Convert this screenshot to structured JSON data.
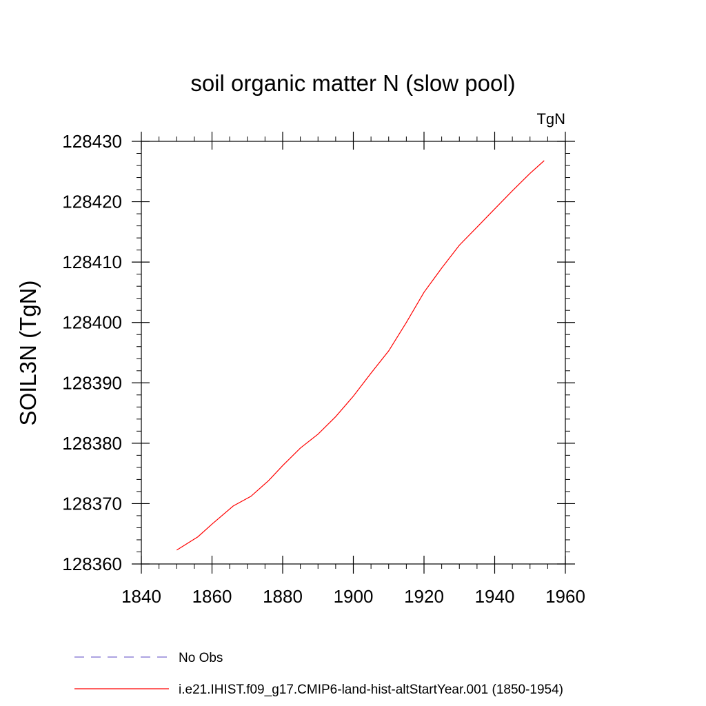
{
  "chart_data": {
    "type": "line",
    "title": "soil organic matter N (slow pool)",
    "units_label": "TgN",
    "xlabel": "",
    "ylabel": "SOIL3N  (TgN)",
    "xlim": [
      1840,
      1960
    ],
    "ylim": [
      128360,
      128430
    ],
    "x_ticks": [
      1840,
      1860,
      1880,
      1900,
      1920,
      1940,
      1960
    ],
    "y_ticks": [
      128360,
      128370,
      128380,
      128390,
      128400,
      128410,
      128420,
      128430
    ],
    "grid": false,
    "legend_position": "bottom",
    "series": [
      {
        "name": "No Obs",
        "color": "#7a6ccf",
        "dash": "dashed",
        "x": [],
        "y": []
      },
      {
        "name": "i.e21.IHIST.f09_g17.CMIP6-land-hist-altStartYear.001 (1850-1954)",
        "color": "#ff0000",
        "dash": "solid",
        "x": [
          1850,
          1856,
          1860,
          1866,
          1871,
          1876,
          1880,
          1885,
          1890,
          1895,
          1900,
          1905,
          1910,
          1915,
          1920,
          1925,
          1930,
          1935,
          1940,
          1945,
          1950,
          1954
        ],
        "y": [
          128362.3,
          128364.5,
          128366.6,
          128369.6,
          128371.2,
          128373.8,
          128376.3,
          128379.2,
          128381.5,
          128384.4,
          128387.8,
          128391.6,
          128395.3,
          128400.0,
          128405.0,
          128409.0,
          128412.8,
          128415.8,
          128418.8,
          128421.8,
          128424.7,
          128426.8
        ]
      }
    ]
  }
}
